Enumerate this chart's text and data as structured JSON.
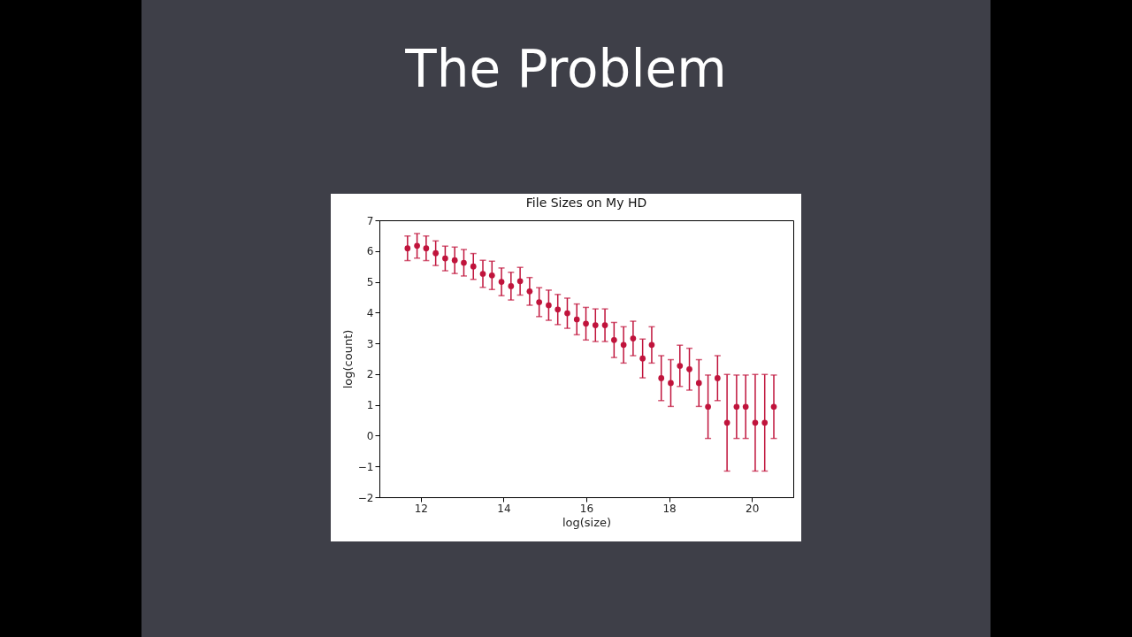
{
  "chart_data": {
    "type": "scatter",
    "title": "File Sizes on My HD",
    "xlabel": "log(size)",
    "ylabel": "log(count)",
    "annotations": [
      "The Problem"
    ],
    "x": [
      11.68,
      11.91,
      12.13,
      12.36,
      12.59,
      12.82,
      13.04,
      13.27,
      13.5,
      13.72,
      13.95,
      14.18,
      14.4,
      14.63,
      14.86,
      15.09,
      15.31,
      15.54,
      15.77,
      15.99,
      16.22,
      16.45,
      16.67,
      16.9,
      17.13,
      17.36,
      17.58,
      17.81,
      18.04,
      18.26,
      18.49,
      18.72,
      18.94,
      19.17,
      19.4,
      19.63,
      19.85,
      20.08,
      20.31,
      20.53
    ],
    "series": [
      {
        "color": "#c0143c",
        "values": [
          6.09,
          6.17,
          6.09,
          5.93,
          5.76,
          5.7,
          5.62,
          5.5,
          5.26,
          5.21,
          5.0,
          4.86,
          5.02,
          4.69,
          4.34,
          4.24,
          4.1,
          3.98,
          3.78,
          3.64,
          3.59,
          3.59,
          3.11,
          2.95,
          3.16,
          2.51,
          2.95,
          1.87,
          1.71,
          2.27,
          2.16,
          1.71,
          0.94,
          1.87,
          0.42,
          0.94,
          0.94,
          0.42,
          0.42,
          0.94
        ],
        "errors": [
          0.4,
          0.4,
          0.4,
          0.4,
          0.4,
          0.43,
          0.43,
          0.42,
          0.44,
          0.46,
          0.45,
          0.45,
          0.45,
          0.45,
          0.47,
          0.49,
          0.49,
          0.49,
          0.5,
          0.53,
          0.53,
          0.53,
          0.57,
          0.59,
          0.56,
          0.63,
          0.59,
          0.73,
          0.76,
          0.67,
          0.68,
          0.76,
          1.03,
          0.73,
          1.57,
          1.03,
          1.03,
          1.57,
          1.57,
          1.03
        ]
      }
    ],
    "xlim": [
      11,
      21
    ],
    "xticks": [
      12,
      14,
      16,
      18,
      20
    ],
    "ylim": [
      -2,
      7
    ],
    "yticks": [
      -2,
      -1,
      0,
      1,
      2,
      3,
      4,
      5,
      6,
      7
    ],
    "grid": false,
    "marker": "circle"
  }
}
